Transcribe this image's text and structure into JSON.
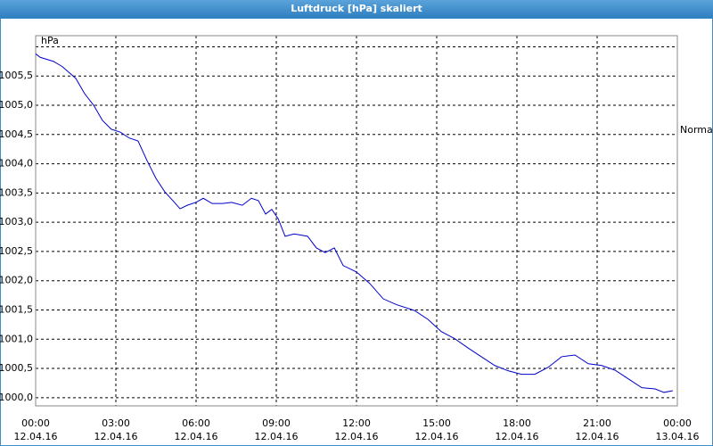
{
  "window_title": "Luftdruck [hPa] skaliert",
  "chart_data": {
    "type": "line",
    "y_unit": "hPa",
    "annotations": [
      {
        "text": "Normal",
        "y": 1004.57
      }
    ],
    "xlim": [
      0,
      24
    ],
    "ylim": [
      999.86,
      1006.19
    ],
    "xticks": [
      {
        "value": 0,
        "label": "00:00",
        "date": "12.04.16"
      },
      {
        "value": 3,
        "label": "03:00",
        "date": "12.04.16"
      },
      {
        "value": 6,
        "label": "06:00",
        "date": "12.04.16"
      },
      {
        "value": 9,
        "label": "09:00",
        "date": "12.04.16"
      },
      {
        "value": 12,
        "label": "12:00",
        "date": "12.04.16"
      },
      {
        "value": 15,
        "label": "15:00",
        "date": "12.04.16"
      },
      {
        "value": 18,
        "label": "18:00",
        "date": "12.04.16"
      },
      {
        "value": 21,
        "label": "21:00",
        "date": "12.04.16"
      },
      {
        "value": 24,
        "label": "00:00",
        "date": "13.04.16"
      }
    ],
    "yticks": [
      {
        "value": 1000,
        "label": "1000,0"
      },
      {
        "value": 1000.5,
        "label": "1000,5"
      },
      {
        "value": 1001,
        "label": "1001,0"
      },
      {
        "value": 1001.5,
        "label": "1001,5"
      },
      {
        "value": 1002,
        "label": "1002,0"
      },
      {
        "value": 1002.5,
        "label": "1002,5"
      },
      {
        "value": 1003,
        "label": "1003,0"
      },
      {
        "value": 1003.5,
        "label": "1003,5"
      },
      {
        "value": 1004,
        "label": "1004,0"
      },
      {
        "value": 1004.5,
        "label": "1004,5"
      },
      {
        "value": 1005,
        "label": "1005,0"
      },
      {
        "value": 1005.5,
        "label": "1005,5"
      },
      {
        "value": 1006,
        "label": null
      }
    ],
    "grid": true,
    "x": [
      0,
      0.17,
      0.67,
      1,
      1.5,
      1.83,
      2.17,
      2.5,
      2.83,
      3.17,
      3.5,
      3.83,
      4.17,
      4.5,
      4.83,
      5.17,
      5.4,
      5.67,
      6,
      6.27,
      6.6,
      7,
      7.33,
      7.73,
      8.07,
      8.33,
      8.6,
      8.83,
      9.07,
      9.33,
      9.67,
      10.17,
      10.5,
      10.83,
      11.17,
      11.5,
      12,
      12.5,
      13,
      13.5,
      14.17,
      14.67,
      15.17,
      15.67,
      16.17,
      16.67,
      17.17,
      17.67,
      18.17,
      18.67,
      19.17,
      19.67,
      20.17,
      20.67,
      21.17,
      21.67,
      22.17,
      22.67,
      23.17,
      23.5,
      23.83
    ],
    "series": [
      {
        "color": "#0000cc",
        "values": [
          1005.88,
          1005.82,
          1005.75,
          1005.66,
          1005.46,
          1005.2,
          1005.0,
          1004.74,
          1004.59,
          1004.54,
          1004.44,
          1004.39,
          1004.05,
          1003.75,
          1003.52,
          1003.35,
          1003.23,
          1003.29,
          1003.34,
          1003.41,
          1003.32,
          1003.32,
          1003.34,
          1003.29,
          1003.41,
          1003.37,
          1003.14,
          1003.22,
          1003.06,
          1002.76,
          1002.8,
          1002.76,
          1002.56,
          1002.48,
          1002.56,
          1002.26,
          1002.15,
          1001.95,
          1001.69,
          1001.59,
          1001.49,
          1001.34,
          1001.13,
          1001.01,
          1000.85,
          1000.7,
          1000.55,
          1000.46,
          1000.4,
          1000.4,
          1000.52,
          1000.7,
          1000.73,
          1000.58,
          1000.55,
          1000.47,
          1000.32,
          1000.17,
          1000.15,
          1000.09,
          1000.12
        ]
      }
    ]
  }
}
